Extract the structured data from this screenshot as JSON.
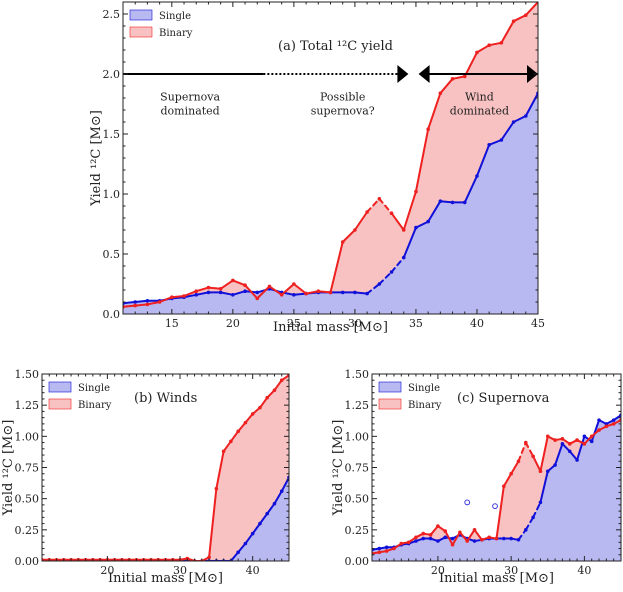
{
  "chart_data": [
    {
      "type": "area",
      "title": "(a) Total ¹²C yield",
      "xlabel": "Initial mass [M⊙]",
      "ylabel": "Yield ¹²C [M⊙]",
      "xlim": [
        11,
        45
      ],
      "ylim": [
        0,
        2.6
      ],
      "xticks": [
        15,
        20,
        25,
        30,
        35,
        40,
        45
      ],
      "yticks": [
        0.0,
        0.5,
        1.0,
        1.5,
        2.0,
        2.5
      ],
      "xtick_labels": [
        "15",
        "20",
        "25",
        "30",
        "35",
        "40",
        "45"
      ],
      "ytick_labels": [
        "0.0",
        "0.5",
        "1.0",
        "1.5",
        "2.0",
        "2.5"
      ],
      "legend": {
        "placement": "top-left",
        "entries": [
          "Single",
          "Binary"
        ]
      },
      "grid": false,
      "colors": {
        "single_line": "#1010d8",
        "single_fill": "#b9b9f2",
        "binary_line": "#ee2020",
        "binary_fill": "#f9c2c2"
      },
      "series": [
        {
          "name": "Single",
          "x": [
            11,
            12,
            13,
            14,
            15,
            16,
            17,
            18,
            19,
            20,
            21,
            22,
            23,
            24,
            25,
            26,
            27,
            28,
            29,
            30,
            31,
            32,
            33,
            34,
            35,
            36,
            37,
            38,
            39,
            40,
            41,
            42,
            43,
            44,
            45
          ],
          "y": [
            0.09,
            0.1,
            0.11,
            0.11,
            0.13,
            0.14,
            0.16,
            0.18,
            0.18,
            0.16,
            0.19,
            0.18,
            0.21,
            0.18,
            0.16,
            0.17,
            0.18,
            0.18,
            0.18,
            0.18,
            0.17,
            0.25,
            0.35,
            0.47,
            0.72,
            0.77,
            0.94,
            0.93,
            0.93,
            1.15,
            1.41,
            1.45,
            1.6,
            1.65,
            1.84
          ],
          "dashed_x_ranges": [
            [
              31,
              34
            ]
          ]
        },
        {
          "name": "Binary",
          "x": [
            11,
            12,
            13,
            14,
            15,
            16,
            17,
            18,
            19,
            20,
            21,
            22,
            23,
            24,
            25,
            26,
            27,
            28,
            29,
            30,
            31,
            32,
            33,
            34,
            35,
            36,
            37,
            38,
            39,
            40,
            41,
            42,
            43,
            44,
            45
          ],
          "y": [
            0.06,
            0.07,
            0.08,
            0.1,
            0.14,
            0.15,
            0.19,
            0.22,
            0.21,
            0.28,
            0.24,
            0.13,
            0.23,
            0.16,
            0.25,
            0.17,
            0.19,
            0.18,
            0.6,
            0.7,
            0.85,
            0.96,
            0.84,
            0.7,
            1.02,
            1.54,
            1.84,
            1.96,
            1.98,
            2.18,
            2.24,
            2.26,
            2.44,
            2.49,
            2.6
          ],
          "dashed_x_ranges": [
            [
              31,
              33
            ]
          ]
        }
      ],
      "annotations": [
        {
          "text": [
            "Supernova",
            "dominated"
          ],
          "x": 16.5,
          "y": 1.78
        },
        {
          "text": [
            "Possible",
            "supernova?"
          ],
          "x": 29.0,
          "y": 1.78
        },
        {
          "text": [
            "Wind",
            "dominated"
          ],
          "x": 40.2,
          "y": 1.78
        }
      ],
      "regions": [
        {
          "label": "Supernova dominated",
          "x_range": [
            11,
            22.5
          ],
          "y": 2.0,
          "style": "solid"
        },
        {
          "label": "Possible supernova?",
          "x_range": [
            22.5,
            34.3
          ],
          "y": 2.0,
          "style": "dotted"
        },
        {
          "label": "Wind dominated",
          "x_range": [
            35.3,
            45
          ],
          "y": 2.0,
          "style": "solid"
        }
      ]
    },
    {
      "type": "area",
      "title": "(b) Winds",
      "xlabel": "Initial mass [M⊙]",
      "ylabel": "Yield ¹²C [M⊙]",
      "xlim": [
        11,
        45
      ],
      "ylim": [
        0,
        1.5
      ],
      "xticks": [
        20,
        30,
        40
      ],
      "yticks": [
        0.0,
        0.25,
        0.5,
        0.75,
        1.0,
        1.25,
        1.5
      ],
      "xtick_labels": [
        "20",
        "30",
        "40"
      ],
      "ytick_labels": [
        "0.00",
        "0.25",
        "0.50",
        "0.75",
        "1.00",
        "1.25",
        "1.50"
      ],
      "legend": {
        "placement": "top-left",
        "entries": [
          "Single",
          "Binary"
        ]
      },
      "grid": false,
      "series": [
        {
          "name": "Single",
          "x": [
            11,
            12,
            13,
            14,
            15,
            16,
            17,
            18,
            19,
            20,
            21,
            22,
            23,
            24,
            25,
            26,
            27,
            28,
            29,
            30,
            31,
            32,
            33,
            34,
            35,
            36,
            37,
            38,
            39,
            40,
            41,
            42,
            43,
            44,
            45
          ],
          "y": [
            0,
            0,
            0,
            0,
            0,
            0,
            0,
            0,
            0,
            0,
            0,
            0,
            0,
            0,
            0,
            0,
            0,
            0,
            0,
            0,
            0,
            0,
            0,
            0,
            0,
            0,
            0,
            0.07,
            0.14,
            0.22,
            0.3,
            0.38,
            0.46,
            0.56,
            0.67
          ]
        },
        {
          "name": "Binary",
          "x": [
            11,
            12,
            13,
            14,
            15,
            16,
            17,
            18,
            19,
            20,
            21,
            22,
            23,
            24,
            25,
            26,
            27,
            28,
            29,
            30,
            31,
            32,
            33,
            34,
            35,
            36,
            37,
            38,
            39,
            40,
            41,
            42,
            43,
            44,
            45
          ],
          "y": [
            0.01,
            0.01,
            0.01,
            0.01,
            0.01,
            0.01,
            0.01,
            0.01,
            0.01,
            0.01,
            0.01,
            0.01,
            0.01,
            0.01,
            0.01,
            0.01,
            0.01,
            0.01,
            0.01,
            0.01,
            0.02,
            0.0,
            0.0,
            0.03,
            0.58,
            0.88,
            0.96,
            1.04,
            1.11,
            1.18,
            1.23,
            1.31,
            1.37,
            1.45,
            1.49
          ]
        }
      ]
    },
    {
      "type": "area",
      "title": "(c) Supernova",
      "xlabel": "Initial mass [M⊙]",
      "ylabel": "Yield ¹²C [M⊙]",
      "xlim": [
        11,
        45
      ],
      "ylim": [
        0,
        1.5
      ],
      "xticks": [
        20,
        30,
        40
      ],
      "yticks": [
        0.0,
        0.25,
        0.5,
        0.75,
        1.0,
        1.25,
        1.5
      ],
      "xtick_labels": [
        "20",
        "30",
        "40"
      ],
      "ytick_labels": [
        "0.00",
        "0.25",
        "0.50",
        "0.75",
        "1.00",
        "1.25",
        "1.50"
      ],
      "legend": {
        "placement": "top-left",
        "entries": [
          "Single",
          "Binary"
        ]
      },
      "grid": false,
      "series": [
        {
          "name": "Single",
          "x": [
            11,
            12,
            13,
            14,
            15,
            16,
            17,
            18,
            19,
            20,
            21,
            22,
            23,
            24,
            25,
            26,
            27,
            28,
            29,
            30,
            31,
            32,
            33,
            34,
            35,
            36,
            37,
            38,
            39,
            40,
            41,
            42,
            43,
            44,
            45
          ],
          "y": [
            0.09,
            0.1,
            0.11,
            0.11,
            0.13,
            0.14,
            0.16,
            0.18,
            0.18,
            0.16,
            0.19,
            0.18,
            0.21,
            0.18,
            0.16,
            0.17,
            0.18,
            0.18,
            0.18,
            0.18,
            0.17,
            0.25,
            0.35,
            0.47,
            0.72,
            0.77,
            0.94,
            0.88,
            0.81,
            1.0,
            0.96,
            1.13,
            1.1,
            1.13,
            1.17
          ],
          "dashed_x_ranges": [
            [
              31,
              34
            ]
          ]
        },
        {
          "name": "Binary",
          "x": [
            11,
            12,
            13,
            14,
            15,
            16,
            17,
            18,
            19,
            20,
            21,
            22,
            23,
            24,
            25,
            26,
            27,
            28,
            29,
            30,
            31,
            32,
            33,
            34,
            35,
            36,
            37,
            38,
            39,
            40,
            41,
            42,
            43,
            44,
            45
          ],
          "y": [
            0.06,
            0.07,
            0.08,
            0.1,
            0.14,
            0.15,
            0.19,
            0.22,
            0.21,
            0.28,
            0.24,
            0.13,
            0.23,
            0.16,
            0.25,
            0.17,
            0.19,
            0.18,
            0.6,
            0.7,
            0.8,
            0.95,
            0.84,
            0.72,
            1.0,
            0.97,
            0.98,
            0.94,
            0.97,
            0.94,
            1.0,
            1.05,
            1.08,
            1.1,
            1.13
          ],
          "dashed_x_ranges": [
            [
              31,
              33
            ]
          ]
        }
      ],
      "outliers": [
        {
          "x": 24.0,
          "y": 0.47
        },
        {
          "x": 27.8,
          "y": 0.44
        }
      ]
    }
  ]
}
